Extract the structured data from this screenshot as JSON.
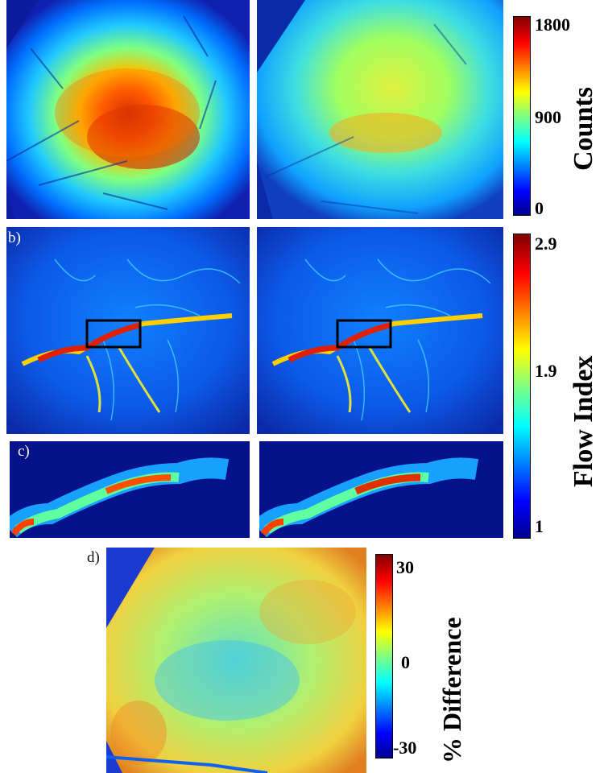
{
  "panels": {
    "a": {
      "label": ""
    },
    "b": {
      "label": "b)"
    },
    "c": {
      "label": "c)"
    },
    "d": {
      "label": "d)"
    }
  },
  "colorbars": {
    "counts": {
      "title": "Counts",
      "ticks": [
        "1800",
        "900",
        "0"
      ]
    },
    "flow": {
      "title": "Flow Index",
      "ticks": [
        "2.9",
        "1.9",
        "1"
      ]
    },
    "diff": {
      "title": "% Difference",
      "ticks": [
        "30",
        "0",
        "-30"
      ]
    }
  },
  "colors": {
    "jet": [
      "#00008f",
      "#0000ff",
      "#0080ff",
      "#00ffff",
      "#80ff80",
      "#ffff00",
      "#ff8000",
      "#ff0000",
      "#800000"
    ],
    "background": "#ffffff",
    "roi_box": "#000000"
  }
}
